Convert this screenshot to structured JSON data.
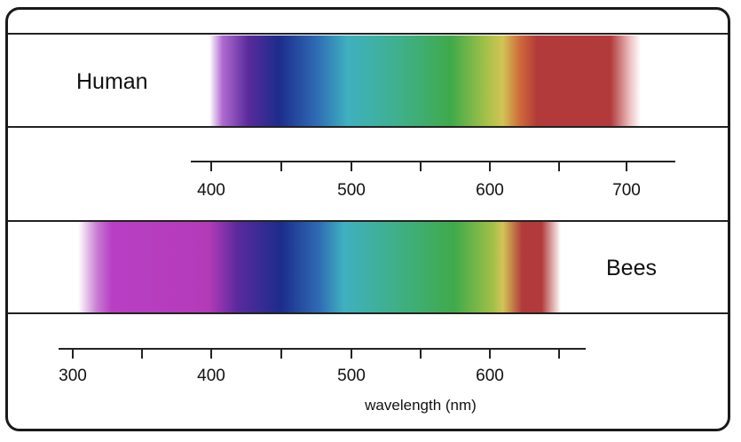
{
  "diagram": {
    "human": {
      "label": "Human",
      "axis_ticks": [
        "400",
        "500",
        "600",
        "700"
      ]
    },
    "bees": {
      "label": "Bees",
      "axis_ticks": [
        "300",
        "400",
        "500",
        "600"
      ]
    },
    "axis_label": "wavelength (nm)",
    "colors": {
      "frame": "#1a1a1a",
      "band_line": "#222222",
      "ultraviolet": "#b83fc4",
      "violet": "#5a2a9c",
      "blue": "#1c2c8c",
      "cyan": "#3fb0c0",
      "green": "#3faa4a",
      "yellow": "#d2c456",
      "red": "#b23a3a"
    }
  }
}
